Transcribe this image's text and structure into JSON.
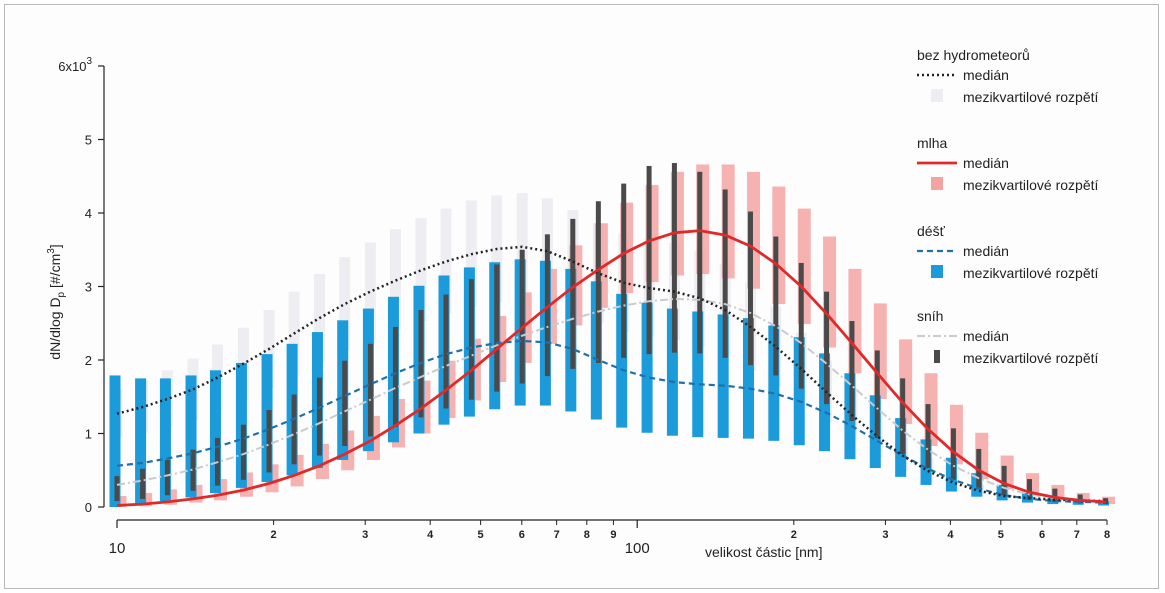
{
  "chart_data": {
    "type": "line",
    "x_scale": "log",
    "xlim": [
      10,
      800
    ],
    "ylim": [
      0,
      6000
    ],
    "xlabel": "velikost částic [nm]",
    "ylabel_parts": {
      "main": "dN/dlog D",
      "sub": "p",
      "unit": " [#/cm",
      "sup": "3",
      "close": "]"
    },
    "y_ticks": [
      0,
      1000,
      2000,
      3000,
      4000,
      5000,
      6000
    ],
    "y_tick_labels": [
      "0",
      "1",
      "2",
      "3",
      "4",
      "5",
      "6x10"
    ],
    "y_top_exponent": "3",
    "x_major_ticks": [
      10,
      100
    ],
    "x_major_labels": [
      "10",
      "100"
    ],
    "x_minor_ticks": [
      20,
      30,
      40,
      50,
      60,
      70,
      80,
      90,
      200,
      300,
      400,
      500,
      600,
      700,
      800
    ],
    "x_minor_labels": [
      "2",
      "3",
      "4",
      "5",
      "6",
      "7",
      "8",
      "9",
      "2",
      "3",
      "4",
      "5",
      "6",
      "7",
      "8"
    ],
    "bins": [
      10.0,
      11.2,
      12.5,
      14.0,
      15.6,
      17.5,
      19.6,
      21.9,
      24.5,
      27.4,
      30.7,
      34.3,
      38.4,
      42.9,
      48.0,
      53.7,
      60.1,
      67.2,
      75.2,
      84.2,
      94.2,
      105.4,
      117.9,
      131.9,
      147.6,
      165.1,
      184.7,
      206.7,
      231.2,
      258.7,
      289.4,
      323.8,
      362.3,
      405.4,
      453.5,
      507.4,
      567.7,
      635.1,
      710.6,
      795.0
    ],
    "series": [
      {
        "name": "bez hydrometeorů",
        "median": [
          1270,
          1360,
          1470,
          1600,
          1760,
          1950,
          2150,
          2360,
          2570,
          2760,
          2930,
          3080,
          3220,
          3340,
          3440,
          3510,
          3540,
          3480,
          3340,
          3180,
          3050,
          2980,
          2930,
          2840,
          2680,
          2450,
          2180,
          1880,
          1560,
          1250,
          960,
          700,
          490,
          330,
          220,
          150,
          120,
          100,
          90,
          80
        ],
        "q1": [
          950,
          1010,
          1090,
          1190,
          1320,
          1460,
          1620,
          1790,
          1960,
          2120,
          2270,
          2410,
          2530,
          2630,
          2720,
          2780,
          2810,
          2760,
          2640,
          2500,
          2380,
          2320,
          2270,
          2180,
          2040,
          1850,
          1630,
          1390,
          1140,
          900,
          680,
          490,
          340,
          220,
          150,
          100,
          80,
          70,
          60,
          55
        ],
        "q3": [
          1600,
          1720,
          1860,
          2020,
          2210,
          2440,
          2680,
          2930,
          3170,
          3400,
          3600,
          3780,
          3930,
          4060,
          4170,
          4240,
          4270,
          4200,
          4040,
          3860,
          3720,
          3650,
          3590,
          3490,
          3310,
          3050,
          2730,
          2370,
          1990,
          1620,
          1260,
          940,
          670,
          460,
          310,
          210,
          170,
          140,
          120,
          110
        ]
      },
      {
        "name": "mlha",
        "median": [
          20,
          40,
          70,
          110,
          160,
          230,
          320,
          430,
          560,
          720,
          900,
          1110,
          1340,
          1590,
          1860,
          2150,
          2440,
          2720,
          2990,
          3230,
          3450,
          3620,
          3730,
          3760,
          3700,
          3550,
          3310,
          3000,
          2630,
          2230,
          1820,
          1420,
          1060,
          750,
          500,
          320,
          200,
          130,
          90,
          70
        ],
        "q1": [
          0,
          10,
          30,
          60,
          90,
          140,
          200,
          280,
          380,
          500,
          640,
          810,
          1000,
          1210,
          1450,
          1700,
          1960,
          2220,
          2470,
          2710,
          2910,
          3060,
          3150,
          3170,
          3110,
          2970,
          2760,
          2490,
          2170,
          1820,
          1470,
          1130,
          830,
          580,
          380,
          240,
          150,
          90,
          60,
          40
        ],
        "q3": [
          150,
          190,
          240,
          300,
          380,
          470,
          580,
          710,
          860,
          1040,
          1240,
          1470,
          1720,
          1990,
          2290,
          2600,
          2920,
          3240,
          3560,
          3860,
          4140,
          4380,
          4560,
          4660,
          4660,
          4560,
          4360,
          4060,
          3680,
          3240,
          2770,
          2280,
          1820,
          1390,
          1010,
          700,
          460,
          300,
          190,
          140
        ]
      },
      {
        "name": "déšť",
        "median": [
          560,
          600,
          660,
          730,
          820,
          930,
          1060,
          1200,
          1350,
          1510,
          1670,
          1820,
          1960,
          2080,
          2170,
          2230,
          2260,
          2240,
          2150,
          2000,
          1860,
          1760,
          1700,
          1670,
          1650,
          1610,
          1540,
          1430,
          1280,
          1100,
          900,
          700,
          520,
          370,
          250,
          160,
          110,
          80,
          70,
          60
        ],
        "q1": [
          0,
          30,
          80,
          130,
          190,
          260,
          340,
          430,
          530,
          640,
          760,
          880,
          1000,
          1120,
          1230,
          1330,
          1380,
          1380,
          1300,
          1190,
          1080,
          1010,
          970,
          950,
          940,
          930,
          900,
          840,
          760,
          650,
          530,
          410,
          300,
          210,
          140,
          90,
          60,
          40,
          30,
          20
        ],
        "q3": [
          1790,
          1750,
          1750,
          1790,
          1860,
          1960,
          2080,
          2220,
          2380,
          2540,
          2700,
          2860,
          3010,
          3150,
          3260,
          3330,
          3370,
          3350,
          3240,
          3070,
          2900,
          2780,
          2700,
          2660,
          2620,
          2570,
          2470,
          2310,
          2090,
          1820,
          1520,
          1210,
          920,
          670,
          460,
          300,
          190,
          120,
          90,
          80
        ]
      },
      {
        "name": "sníh",
        "median": [
          300,
          360,
          430,
          510,
          610,
          720,
          850,
          990,
          1140,
          1300,
          1460,
          1620,
          1770,
          1920,
          2060,
          2200,
          2330,
          2450,
          2560,
          2660,
          2740,
          2800,
          2830,
          2820,
          2760,
          2640,
          2460,
          2230,
          1950,
          1650,
          1340,
          1040,
          780,
          560,
          390,
          260,
          170,
          120,
          90,
          80
        ],
        "q1": [
          80,
          110,
          160,
          220,
          290,
          370,
          470,
          580,
          700,
          830,
          960,
          1090,
          1220,
          1340,
          1460,
          1570,
          1680,
          1780,
          1880,
          1960,
          2030,
          2080,
          2100,
          2090,
          2030,
          1930,
          1790,
          1610,
          1400,
          1170,
          940,
          720,
          530,
          370,
          250,
          160,
          100,
          70,
          50,
          40
        ],
        "q3": [
          420,
          520,
          640,
          780,
          940,
          1120,
          1320,
          1530,
          1760,
          1990,
          2220,
          2450,
          2680,
          2890,
          3100,
          3300,
          3500,
          3710,
          3920,
          4160,
          4400,
          4640,
          4680,
          4560,
          4320,
          4020,
          3680,
          3320,
          2930,
          2530,
          2130,
          1750,
          1400,
          1070,
          790,
          560,
          380,
          250,
          170,
          120
        ]
      }
    ],
    "legend": [
      {
        "head": "bez hydrometeorů",
        "median_label": "medián",
        "iqr_label": "mezikvartilové rozpětí"
      },
      {
        "head": "mlha",
        "median_label": "medián",
        "iqr_label": "mezikvartilové rozpětí"
      },
      {
        "head": "déšť",
        "median_label": "medián",
        "iqr_label": "mezikvartilové rozpětí"
      },
      {
        "head": "sníh",
        "median_label": "medián",
        "iqr_label": "mezikvartilové rozpětí"
      }
    ],
    "colors": {
      "bez_hydrometeoru_median": "#222222",
      "bez_hydrometeoru_iqr": "#eeeef2",
      "mlha_median": "#e02a2a",
      "mlha_iqr": "#f4a3a3",
      "dest_median": "#1f6fa8",
      "dest_iqr": "#1c9bdb",
      "snih_median": "#c8ccd0",
      "snih_iqr": "#4a4a4a"
    }
  }
}
